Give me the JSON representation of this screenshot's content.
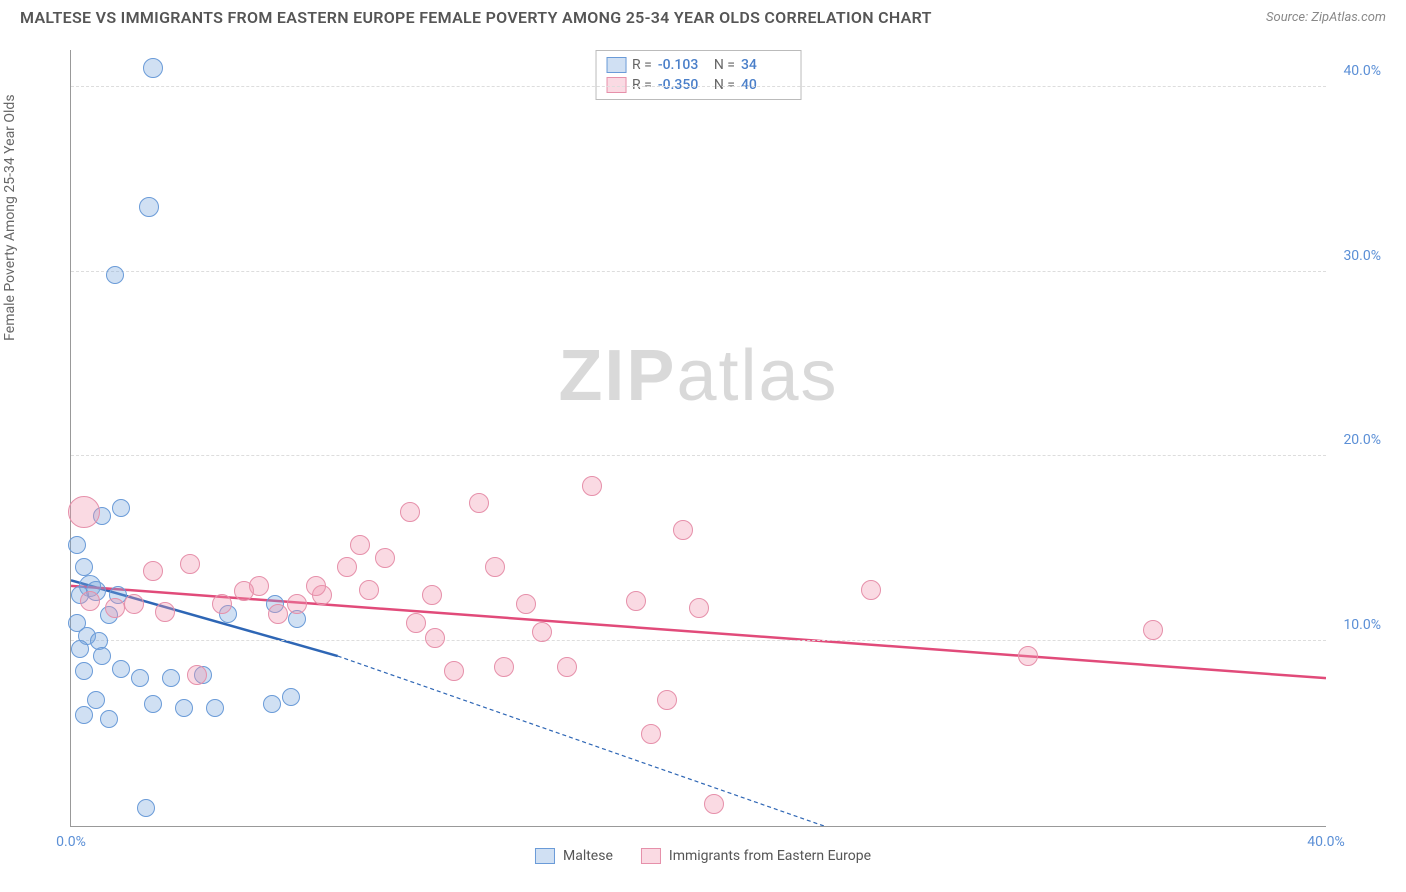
{
  "title": "MALTESE VS IMMIGRANTS FROM EASTERN EUROPE FEMALE POVERTY AMONG 25-34 YEAR OLDS CORRELATION CHART",
  "source": "Source: ZipAtlas.com",
  "ylabel": "Female Poverty Among 25-34 Year Olds",
  "watermark_a": "ZIP",
  "watermark_b": "atlas",
  "chart": {
    "type": "scatter",
    "xlim": [
      0,
      40
    ],
    "ylim": [
      0,
      42
    ],
    "xticks": [
      {
        "v": 0,
        "label": "0.0%"
      },
      {
        "v": 40,
        "label": "40.0%"
      }
    ],
    "yticks": [
      {
        "v": 10,
        "label": "10.0%"
      },
      {
        "v": 20,
        "label": "20.0%"
      },
      {
        "v": 30,
        "label": "30.0%"
      },
      {
        "v": 40,
        "label": "40.0%"
      }
    ],
    "background_color": "#ffffff",
    "grid_color": "#dddddd",
    "series": [
      {
        "name": "Maltese",
        "fill": "rgba(120,165,220,0.35)",
        "stroke": "#6a9bd8",
        "trend_color": "#2e66b5",
        "trend": {
          "x1": 0,
          "y1": 13.3,
          "x2": 8.5,
          "y2": 9.2,
          "x2_dash": 24,
          "y2_dash": 0
        },
        "R": "-0.103",
        "N": "34",
        "points": [
          {
            "x": 2.6,
            "y": 41.0,
            "r": 10
          },
          {
            "x": 2.5,
            "y": 33.5,
            "r": 10
          },
          {
            "x": 1.4,
            "y": 29.8,
            "r": 9
          },
          {
            "x": 1.0,
            "y": 16.8,
            "r": 9
          },
          {
            "x": 1.6,
            "y": 17.2,
            "r": 9
          },
          {
            "x": 0.2,
            "y": 15.2,
            "r": 9
          },
          {
            "x": 0.4,
            "y": 14.0,
            "r": 9
          },
          {
            "x": 0.6,
            "y": 13.0,
            "r": 11
          },
          {
            "x": 0.3,
            "y": 12.5,
            "r": 9
          },
          {
            "x": 0.8,
            "y": 12.7,
            "r": 10
          },
          {
            "x": 1.5,
            "y": 12.5,
            "r": 9
          },
          {
            "x": 1.2,
            "y": 11.4,
            "r": 9
          },
          {
            "x": 0.2,
            "y": 11.0,
            "r": 9
          },
          {
            "x": 0.5,
            "y": 10.3,
            "r": 9
          },
          {
            "x": 0.9,
            "y": 10.0,
            "r": 9
          },
          {
            "x": 0.3,
            "y": 9.6,
            "r": 9
          },
          {
            "x": 1.0,
            "y": 9.2,
            "r": 9
          },
          {
            "x": 0.4,
            "y": 8.4,
            "r": 9
          },
          {
            "x": 1.6,
            "y": 8.5,
            "r": 9
          },
          {
            "x": 2.2,
            "y": 8.0,
            "r": 9
          },
          {
            "x": 3.2,
            "y": 8.0,
            "r": 9
          },
          {
            "x": 4.2,
            "y": 8.2,
            "r": 9
          },
          {
            "x": 0.8,
            "y": 6.8,
            "r": 9
          },
          {
            "x": 2.6,
            "y": 6.6,
            "r": 9
          },
          {
            "x": 3.6,
            "y": 6.4,
            "r": 9
          },
          {
            "x": 4.6,
            "y": 6.4,
            "r": 9
          },
          {
            "x": 6.4,
            "y": 6.6,
            "r": 9
          },
          {
            "x": 7.0,
            "y": 7.0,
            "r": 9
          },
          {
            "x": 0.4,
            "y": 6.0,
            "r": 9
          },
          {
            "x": 1.2,
            "y": 5.8,
            "r": 9
          },
          {
            "x": 2.4,
            "y": 1.0,
            "r": 9
          },
          {
            "x": 5.0,
            "y": 11.5,
            "r": 9
          },
          {
            "x": 6.5,
            "y": 12.0,
            "r": 9
          },
          {
            "x": 7.2,
            "y": 11.2,
            "r": 9
          }
        ]
      },
      {
        "name": "Immigrants from Eastern Europe",
        "fill": "rgba(240,150,175,0.35)",
        "stroke": "#e690aa",
        "trend_color": "#e14b7a",
        "trend": {
          "x1": 0,
          "y1": 13.0,
          "x2": 40,
          "y2": 8.0
        },
        "R": "-0.350",
        "N": "40",
        "points": [
          {
            "x": 0.4,
            "y": 17.0,
            "r": 16
          },
          {
            "x": 3.8,
            "y": 14.2,
            "r": 10
          },
          {
            "x": 2.0,
            "y": 12.0,
            "r": 10
          },
          {
            "x": 3.0,
            "y": 11.6,
            "r": 10
          },
          {
            "x": 4.8,
            "y": 12.0,
            "r": 10
          },
          {
            "x": 6.0,
            "y": 13.0,
            "r": 10
          },
          {
            "x": 6.6,
            "y": 11.5,
            "r": 10
          },
          {
            "x": 7.2,
            "y": 12.0,
            "r": 10
          },
          {
            "x": 8.0,
            "y": 12.5,
            "r": 10
          },
          {
            "x": 8.8,
            "y": 14.0,
            "r": 10
          },
          {
            "x": 9.2,
            "y": 15.2,
            "r": 10
          },
          {
            "x": 10.0,
            "y": 14.5,
            "r": 10
          },
          {
            "x": 10.8,
            "y": 17.0,
            "r": 10
          },
          {
            "x": 11.0,
            "y": 11.0,
            "r": 10
          },
          {
            "x": 11.6,
            "y": 10.2,
            "r": 10
          },
          {
            "x": 12.2,
            "y": 8.4,
            "r": 10
          },
          {
            "x": 13.0,
            "y": 17.5,
            "r": 10
          },
          {
            "x": 13.5,
            "y": 14.0,
            "r": 10
          },
          {
            "x": 13.8,
            "y": 8.6,
            "r": 10
          },
          {
            "x": 15.0,
            "y": 10.5,
            "r": 10
          },
          {
            "x": 15.8,
            "y": 8.6,
            "r": 10
          },
          {
            "x": 16.6,
            "y": 18.4,
            "r": 10
          },
          {
            "x": 18.0,
            "y": 12.2,
            "r": 10
          },
          {
            "x": 18.5,
            "y": 5.0,
            "r": 10
          },
          {
            "x": 19.5,
            "y": 16.0,
            "r": 10
          },
          {
            "x": 20.0,
            "y": 11.8,
            "r": 10
          },
          {
            "x": 20.5,
            "y": 1.2,
            "r": 10
          },
          {
            "x": 19.0,
            "y": 6.8,
            "r": 10
          },
          {
            "x": 25.5,
            "y": 12.8,
            "r": 10
          },
          {
            "x": 30.5,
            "y": 9.2,
            "r": 10
          },
          {
            "x": 34.5,
            "y": 10.6,
            "r": 10
          },
          {
            "x": 5.5,
            "y": 12.7,
            "r": 10
          },
          {
            "x": 7.8,
            "y": 13.0,
            "r": 10
          },
          {
            "x": 9.5,
            "y": 12.8,
            "r": 10
          },
          {
            "x": 11.5,
            "y": 12.5,
            "r": 10
          },
          {
            "x": 14.5,
            "y": 12.0,
            "r": 10
          },
          {
            "x": 2.6,
            "y": 13.8,
            "r": 10
          },
          {
            "x": 1.4,
            "y": 11.8,
            "r": 10
          },
          {
            "x": 0.6,
            "y": 12.2,
            "r": 10
          },
          {
            "x": 4.0,
            "y": 8.2,
            "r": 10
          }
        ]
      }
    ]
  },
  "stats_box": {
    "rows": [
      {
        "r_label": "R =",
        "r_val": "-0.103",
        "n_label": "N =",
        "n_val": "34"
      },
      {
        "r_label": "R =",
        "r_val": "-0.350",
        "n_label": "N =",
        "n_val": "40"
      }
    ]
  },
  "legend": {
    "items": [
      {
        "label": "Maltese"
      },
      {
        "label": "Immigrants from Eastern Europe"
      }
    ]
  }
}
